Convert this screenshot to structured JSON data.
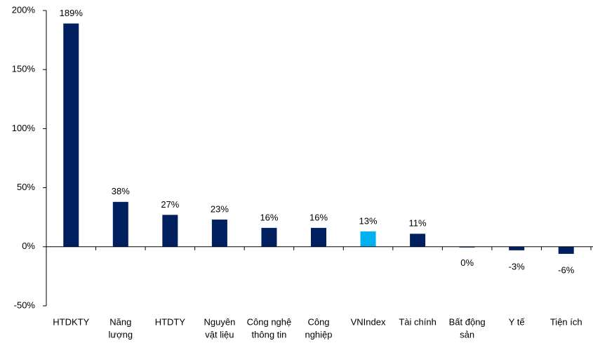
{
  "chart_data": {
    "type": "bar",
    "categories": [
      [
        "HTDKTY"
      ],
      [
        "Năng",
        "lượng"
      ],
      [
        "HTDTY"
      ],
      [
        "Nguyên",
        "vật liệu"
      ],
      [
        "Công nghệ",
        "thông tin"
      ],
      [
        "Công",
        "nghiệp"
      ],
      [
        "VNIndex"
      ],
      [
        "Tài chính"
      ],
      [
        "Bất động",
        "sản"
      ],
      [
        "Y tế"
      ],
      [
        "Tiện ích"
      ]
    ],
    "values": [
      189,
      38,
      27,
      23,
      16,
      16,
      13,
      11,
      0,
      -3,
      -6
    ],
    "value_labels": [
      "189%",
      "38%",
      "27%",
      "23%",
      "16%",
      "16%",
      "13%",
      "11%",
      "0%",
      "-3%",
      "-6%"
    ],
    "colors": [
      "#002060",
      "#002060",
      "#002060",
      "#002060",
      "#002060",
      "#002060",
      "#00b0f0",
      "#002060",
      "#002060",
      "#002060",
      "#002060"
    ],
    "ylim": [
      -50,
      200
    ],
    "yticks": [
      {
        "value": -50,
        "label": "-50%"
      },
      {
        "value": 0,
        "label": "0%"
      },
      {
        "value": 50,
        "label": "50%"
      },
      {
        "value": 100,
        "label": "100%"
      },
      {
        "value": 150,
        "label": "150%"
      },
      {
        "value": 200,
        "label": "200%"
      }
    ]
  }
}
